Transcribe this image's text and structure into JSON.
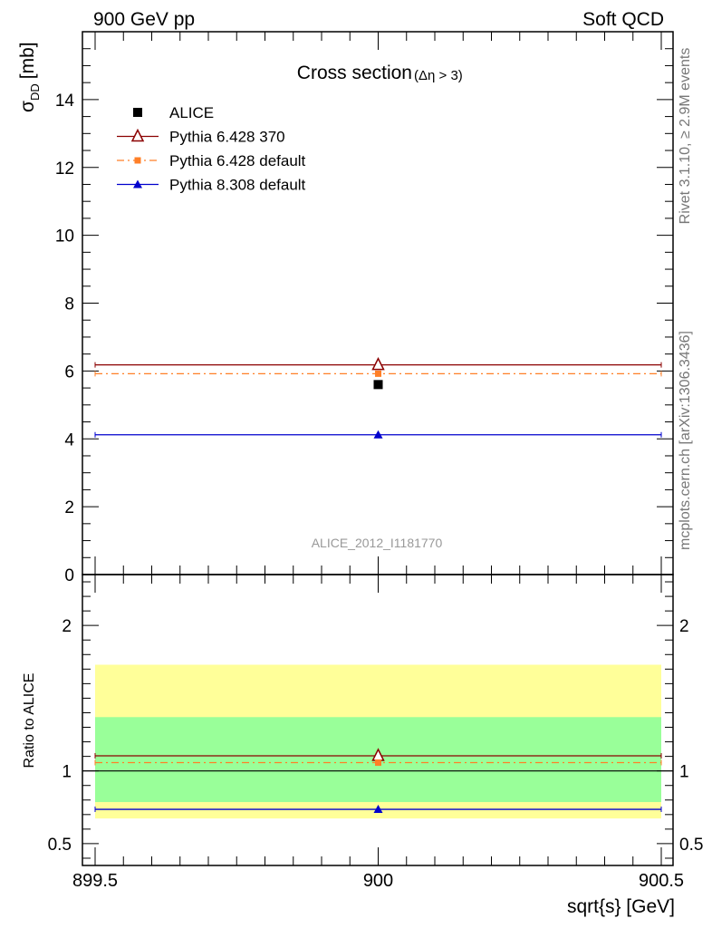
{
  "header": {
    "left": "900 GeV pp",
    "right": "Soft QCD"
  },
  "side_labels": {
    "rivet": "Rivet 3.1.10, ≥ 2.9M events",
    "source": "mcplots.cern.ch [arXiv:1306.3436]"
  },
  "chart_data": [
    {
      "type": "scatter",
      "title": "Cross section",
      "title_condition": "(Δη > 3)",
      "ylabel": "σ",
      "ylabel_sub": "DD",
      "ylabel_unit": "[mb]",
      "xlim": [
        899.5,
        900.5
      ],
      "ylim": [
        0,
        16
      ],
      "y_ticks": [
        0,
        2,
        4,
        6,
        8,
        10,
        12,
        14
      ],
      "annotation": "ALICE_2012_I1181770",
      "legend_position": "top-left",
      "series": [
        {
          "name": "ALICE",
          "x": [
            900
          ],
          "y": [
            5.6
          ],
          "color": "#000000",
          "marker": "square"
        },
        {
          "name": "Pythia 6.428 370",
          "x": [
            900
          ],
          "y": [
            6.18
          ],
          "x_range": [
            899.5,
            900.5
          ],
          "color": "#8b0000",
          "marker": "open-triangle",
          "line": "solid"
        },
        {
          "name": "Pythia 6.428 default",
          "x": [
            900
          ],
          "y": [
            5.92
          ],
          "x_range": [
            899.5,
            900.5
          ],
          "color": "#ff7f27",
          "marker": "square-small",
          "line": "dash-dot"
        },
        {
          "name": "Pythia 8.308 default",
          "x": [
            900
          ],
          "y": [
            4.12
          ],
          "x_range": [
            899.5,
            900.5
          ],
          "color": "#0000cd",
          "marker": "triangle",
          "line": "solid"
        }
      ]
    },
    {
      "type": "scatter",
      "ylabel": "Ratio to ALICE",
      "xlabel": "sqrt{s} [GeV]",
      "xlim": [
        899.5,
        900.5
      ],
      "ylim": [
        0.35,
        2.35
      ],
      "y_ticks": [
        0.5,
        1,
        2
      ],
      "x_ticks": [
        899.5,
        900,
        900.5
      ],
      "x_tick_labels": [
        "899.5",
        "900",
        "900.5"
      ],
      "bands": [
        {
          "name": "outer",
          "lo": 0.673,
          "hi": 1.73,
          "color": "#ffff99"
        },
        {
          "name": "inner",
          "lo": 0.786,
          "hi": 1.37,
          "color": "#99ff99"
        }
      ],
      "reference_line": 1,
      "series": [
        {
          "name": "Pythia 6.428 370",
          "x": [
            900
          ],
          "y": [
            1.104
          ],
          "color": "#8b0000",
          "marker": "open-triangle",
          "line": "solid"
        },
        {
          "name": "Pythia 6.428 default",
          "x": [
            900
          ],
          "y": [
            1.057
          ],
          "color": "#ff7f27",
          "marker": "square-small",
          "line": "dash-dot"
        },
        {
          "name": "Pythia 8.308 default",
          "x": [
            900
          ],
          "y": [
            0.736
          ],
          "color": "#0000cd",
          "marker": "triangle",
          "line": "solid"
        }
      ]
    }
  ]
}
